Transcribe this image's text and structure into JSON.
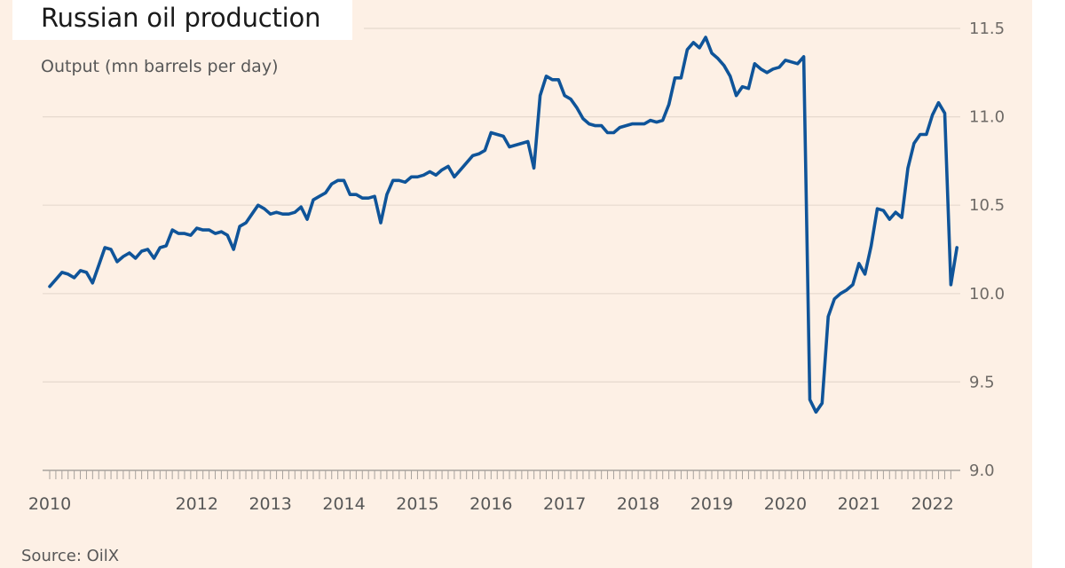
{
  "chart_data": {
    "type": "line",
    "title": "Russian oil production",
    "subtitle": "Output (mn barrels per day)",
    "source": "Source: OilX",
    "ylim": [
      9.0,
      11.5
    ],
    "yticks": [
      "11.5",
      "11.0",
      "10.5",
      "10.0",
      "9.5",
      "9.0"
    ],
    "xlim": [
      2010,
      2022.33
    ],
    "xticks": [
      "2010",
      "2012",
      "2013",
      "2014",
      "2015",
      "2016",
      "2017",
      "2018",
      "2019",
      "2020",
      "2021",
      "2022"
    ],
    "grid": true,
    "y_axis_side": "right",
    "color": "#0f5499",
    "series": [
      {
        "x": [
          2010.0,
          2010.083,
          2010.167,
          2010.25,
          2010.333,
          2010.417,
          2010.5,
          2010.583,
          2010.667,
          2010.75,
          2010.833,
          2010.917,
          2011.0,
          2011.083,
          2011.167,
          2011.25,
          2011.333,
          2011.417,
          2011.5,
          2011.583,
          2011.667,
          2011.75,
          2011.833,
          2011.917,
          2012.0,
          2012.083,
          2012.167,
          2012.25,
          2012.333,
          2012.417,
          2012.5,
          2012.583,
          2012.667,
          2012.75,
          2012.833,
          2012.917,
          2013.0,
          2013.083,
          2013.167,
          2013.25,
          2013.333,
          2013.417,
          2013.5,
          2013.583,
          2013.667,
          2013.75,
          2013.833,
          2013.917,
          2014.0,
          2014.083,
          2014.167,
          2014.25,
          2014.333,
          2014.417,
          2014.5,
          2014.583,
          2014.667,
          2014.75,
          2014.833,
          2014.917,
          2015.0,
          2015.083,
          2015.167,
          2015.25,
          2015.333,
          2015.417,
          2015.5,
          2015.583,
          2015.667,
          2015.75,
          2015.833,
          2015.917,
          2016.0,
          2016.083,
          2016.167,
          2016.25,
          2016.333,
          2016.417,
          2016.5,
          2016.583,
          2016.667,
          2016.75,
          2016.833,
          2016.917,
          2017.0,
          2017.083,
          2017.167,
          2017.25,
          2017.333,
          2017.417,
          2017.5,
          2017.583,
          2017.667,
          2017.75,
          2017.833,
          2017.917,
          2018.0,
          2018.083,
          2018.167,
          2018.25,
          2018.333,
          2018.417,
          2018.5,
          2018.583,
          2018.667,
          2018.75,
          2018.833,
          2018.917,
          2019.0,
          2019.083,
          2019.167,
          2019.25,
          2019.333,
          2019.417,
          2019.5,
          2019.583,
          2019.667,
          2019.75,
          2019.833,
          2019.917,
          2020.0,
          2020.083,
          2020.167,
          2020.25,
          2020.333,
          2020.417,
          2020.5,
          2020.583,
          2020.667,
          2020.75,
          2020.833,
          2020.917,
          2021.0,
          2021.083,
          2021.167,
          2021.25,
          2021.333,
          2021.417,
          2021.5,
          2021.583,
          2021.667,
          2021.75,
          2021.833,
          2021.917,
          2022.0,
          2022.083,
          2022.167,
          2022.25,
          2022.333
        ],
        "values": [
          10.04,
          10.08,
          10.12,
          10.11,
          10.09,
          10.13,
          10.12,
          10.06,
          10.16,
          10.26,
          10.25,
          10.18,
          10.21,
          10.23,
          10.2,
          10.24,
          10.25,
          10.2,
          10.26,
          10.27,
          10.36,
          10.34,
          10.34,
          10.33,
          10.37,
          10.36,
          10.36,
          10.34,
          10.35,
          10.33,
          10.25,
          10.38,
          10.4,
          10.45,
          10.5,
          10.48,
          10.45,
          10.46,
          10.45,
          10.45,
          10.46,
          10.49,
          10.42,
          10.53,
          10.55,
          10.57,
          10.62,
          10.64,
          10.64,
          10.56,
          10.56,
          10.54,
          10.54,
          10.55,
          10.4,
          10.56,
          10.64,
          10.64,
          10.63,
          10.66,
          10.66,
          10.67,
          10.69,
          10.67,
          10.7,
          10.72,
          10.66,
          10.7,
          10.74,
          10.78,
          10.79,
          10.81,
          10.91,
          10.9,
          10.89,
          10.83,
          10.84,
          10.85,
          10.86,
          10.71,
          11.12,
          11.23,
          11.21,
          11.21,
          11.12,
          11.1,
          11.05,
          10.99,
          10.96,
          10.95,
          10.95,
          10.91,
          10.91,
          10.94,
          10.95,
          10.96,
          10.96,
          10.96,
          10.98,
          10.97,
          10.98,
          11.07,
          11.22,
          11.22,
          11.38,
          11.42,
          11.39,
          11.45,
          11.36,
          11.33,
          11.29,
          11.23,
          11.12,
          11.17,
          11.16,
          11.3,
          11.27,
          11.25,
          11.27,
          11.28,
          11.32,
          11.31,
          11.3,
          11.34,
          9.4,
          9.33,
          9.38,
          9.87,
          9.97,
          10.0,
          10.02,
          10.05,
          10.17,
          10.11,
          10.27,
          10.48,
          10.47,
          10.42,
          10.46,
          10.43,
          10.71,
          10.85,
          10.9,
          10.9,
          11.01,
          11.08,
          11.02,
          10.05,
          10.26
        ]
      }
    ]
  }
}
